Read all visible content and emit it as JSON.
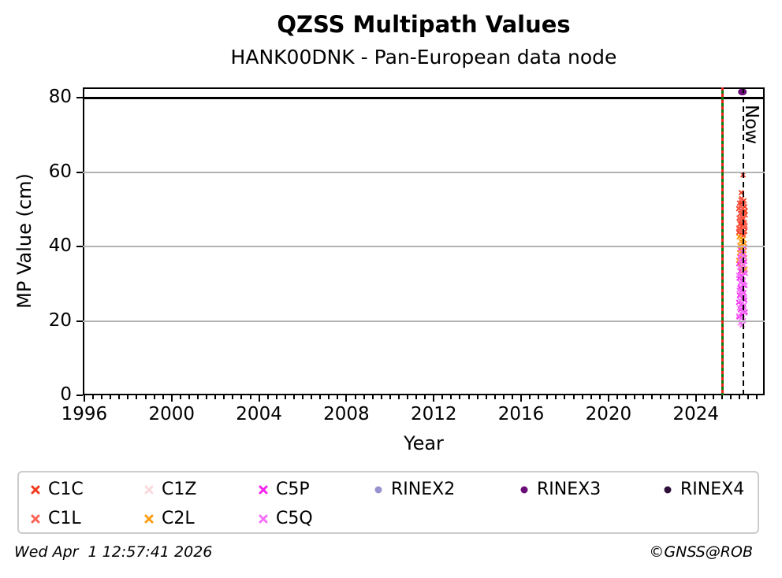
{
  "header": {
    "title": "QZSS Multipath Values",
    "subtitle": "HANK00DNK - Pan-European data node"
  },
  "footer": {
    "timestamp": "Wed Apr  1 12:57:41 2026",
    "credit": "©GNSS@ROB"
  },
  "chart_data": {
    "type": "scatter",
    "title": "QZSS Multipath Values",
    "subtitle": "HANK00DNK - Pan-European data node",
    "xlabel": "Year",
    "ylabel": "MP Value (cm)",
    "xlim": [
      1995.93,
      2027.15
    ],
    "ylim": [
      0,
      82.8
    ],
    "x_major_ticks": [
      1996,
      2000,
      2004,
      2008,
      2012,
      2016,
      2020,
      2024
    ],
    "x_minor_step": 0.4,
    "y_ticks": [
      0,
      20,
      40,
      60,
      80
    ],
    "grid_y": [
      20,
      40,
      60
    ],
    "grid_color": "#b3b3b3",
    "grid": true,
    "legend_position": "bottom",
    "hline": {
      "y": 80,
      "color": "#000000"
    },
    "vlines": [
      {
        "x": 2025.23,
        "style": "solid-green-with-red-dashes",
        "colors": [
          "#0a7a0a",
          "#e8231a"
        ],
        "label": ""
      },
      {
        "x": 2026.17,
        "style": "dashed-black",
        "colors": [
          "#000000"
        ],
        "label": "Now"
      }
    ],
    "series": [
      {
        "name": "C1C",
        "marker": "x",
        "color": "#f23a1e",
        "points": [
          [
            2026.16,
            59.3
          ],
          [
            2026.08,
            54.5
          ],
          [
            2026.1,
            52.9
          ],
          [
            2026.2,
            52.3
          ],
          [
            2026.0,
            51.7
          ],
          [
            2026.14,
            51.2
          ],
          [
            2026.24,
            50.7
          ],
          [
            2025.96,
            50.2
          ],
          [
            2026.08,
            49.8
          ],
          [
            2026.18,
            49.3
          ],
          [
            2026.04,
            48.9
          ],
          [
            2026.26,
            48.5
          ],
          [
            2026.12,
            48.1
          ],
          [
            2025.98,
            47.7
          ],
          [
            2026.16,
            47.3
          ],
          [
            2026.06,
            46.9
          ],
          [
            2026.22,
            46.5
          ],
          [
            2026.02,
            46.1
          ],
          [
            2026.1,
            45.7
          ],
          [
            2026.2,
            45.3
          ],
          [
            2026.0,
            44.9
          ],
          [
            2026.14,
            44.5
          ],
          [
            2026.24,
            44.1
          ],
          [
            2025.96,
            43.8
          ],
          [
            2026.08,
            43.4
          ],
          [
            2026.18,
            43.0
          ],
          [
            2026.04,
            50.9
          ],
          [
            2026.26,
            49.6
          ],
          [
            2026.12,
            46.3
          ],
          [
            2025.98,
            44.7
          ]
        ]
      },
      {
        "name": "C1Z",
        "marker": "x",
        "color": "#fbd9dd",
        "points": [
          [
            2025.98,
            40.5
          ],
          [
            2026.16,
            37.9
          ],
          [
            2026.06,
            35.3
          ]
        ]
      },
      {
        "name": "C5P",
        "marker": "x",
        "color": "#f322ec",
        "points": [
          [
            2026.22,
            39.9
          ],
          [
            2026.02,
            39.3
          ],
          [
            2026.1,
            38.6
          ],
          [
            2026.2,
            38.0
          ],
          [
            2026.0,
            37.3
          ],
          [
            2026.14,
            36.7
          ],
          [
            2026.24,
            36.0
          ],
          [
            2025.96,
            35.4
          ],
          [
            2026.08,
            34.7
          ],
          [
            2026.18,
            34.1
          ],
          [
            2026.04,
            33.4
          ],
          [
            2026.26,
            32.8
          ],
          [
            2026.12,
            32.1
          ],
          [
            2025.98,
            31.5
          ],
          [
            2026.16,
            30.8
          ],
          [
            2026.06,
            30.2
          ],
          [
            2026.22,
            29.5
          ],
          [
            2026.02,
            28.9
          ],
          [
            2026.1,
            28.2
          ],
          [
            2026.2,
            27.6
          ],
          [
            2026.0,
            26.9
          ],
          [
            2026.14,
            26.3
          ],
          [
            2026.24,
            25.6
          ],
          [
            2025.96,
            25.0
          ],
          [
            2026.08,
            24.3
          ],
          [
            2026.18,
            23.7
          ],
          [
            2026.04,
            23.0
          ],
          [
            2026.26,
            22.4
          ],
          [
            2026.12,
            21.7
          ],
          [
            2025.98,
            21.1
          ]
        ]
      },
      {
        "name": "RINEX2",
        "marker": "circle",
        "color": "#9793cf",
        "points": []
      },
      {
        "name": "RINEX3",
        "marker": "circle",
        "color": "#6b0d78",
        "points": [
          [
            2026.13,
            81.6
          ]
        ]
      },
      {
        "name": "RINEX4",
        "marker": "circle",
        "color": "#2d0f39",
        "points": []
      },
      {
        "name": "C1L",
        "marker": "x",
        "color": "#fc6456",
        "points": [
          [
            2026.06,
            52.5
          ],
          [
            2026.22,
            51.5
          ],
          [
            2026.02,
            50.9
          ],
          [
            2026.1,
            49.6
          ],
          [
            2026.2,
            48.7
          ],
          [
            2026.0,
            47.5
          ],
          [
            2026.14,
            46.7
          ],
          [
            2026.24,
            45.9
          ],
          [
            2025.96,
            45.0
          ],
          [
            2026.08,
            44.3
          ],
          [
            2026.18,
            43.6
          ],
          [
            2026.04,
            47.1
          ],
          [
            2026.26,
            45.5
          ],
          [
            2026.12,
            48.3
          ]
        ]
      },
      {
        "name": "C2L",
        "marker": "x",
        "color": "#ff9c12",
        "points": [
          [
            2025.98,
            42.6
          ],
          [
            2026.16,
            42.0
          ],
          [
            2026.06,
            41.4
          ],
          [
            2026.22,
            40.8
          ],
          [
            2026.02,
            40.2
          ],
          [
            2026.1,
            39.5
          ],
          [
            2026.2,
            38.9
          ],
          [
            2026.0,
            38.3
          ],
          [
            2026.14,
            37.6
          ],
          [
            2026.24,
            37.0
          ],
          [
            2025.96,
            36.3
          ],
          [
            2026.08,
            35.7
          ],
          [
            2026.18,
            35.1
          ],
          [
            2026.04,
            34.5
          ],
          [
            2026.26,
            33.9
          ],
          [
            2026.12,
            33.4
          ]
        ]
      },
      {
        "name": "C5Q",
        "marker": "x",
        "color": "#f470f9",
        "points": [
          [
            2026.16,
            38.5
          ],
          [
            2026.06,
            37.8
          ],
          [
            2026.22,
            37.1
          ],
          [
            2026.02,
            36.4
          ],
          [
            2026.1,
            35.8
          ],
          [
            2026.2,
            35.1
          ],
          [
            2026.0,
            34.4
          ],
          [
            2026.14,
            33.7
          ],
          [
            2026.24,
            33.0
          ],
          [
            2025.96,
            32.3
          ],
          [
            2026.08,
            31.7
          ],
          [
            2026.18,
            31.0
          ],
          [
            2026.04,
            30.3
          ],
          [
            2026.26,
            29.6
          ],
          [
            2026.12,
            28.9
          ],
          [
            2025.98,
            28.3
          ],
          [
            2026.16,
            27.6
          ],
          [
            2026.06,
            26.9
          ],
          [
            2026.22,
            26.2
          ],
          [
            2026.02,
            25.5
          ],
          [
            2026.1,
            24.8
          ],
          [
            2026.2,
            24.2
          ],
          [
            2026.0,
            23.5
          ],
          [
            2026.14,
            22.8
          ],
          [
            2026.24,
            22.1
          ],
          [
            2025.96,
            21.4
          ],
          [
            2026.08,
            20.8
          ],
          [
            2026.18,
            20.1
          ],
          [
            2026.04,
            19.4
          ],
          [
            2026.12,
            18.9
          ]
        ]
      }
    ]
  },
  "legend": {
    "items": [
      {
        "label": "C1C",
        "marker": "x",
        "color": "#f23a1e"
      },
      {
        "label": "C1Z",
        "marker": "x",
        "color": "#fbd9dd"
      },
      {
        "label": "C5P",
        "marker": "x",
        "color": "#f322ec"
      },
      {
        "label": "RINEX2",
        "marker": "circle",
        "color": "#9793cf"
      },
      {
        "label": "RINEX3",
        "marker": "circle",
        "color": "#6b0d78"
      },
      {
        "label": "RINEX4",
        "marker": "circle",
        "color": "#2d0f39"
      },
      {
        "label": "C1L",
        "marker": "x",
        "color": "#fc6456"
      },
      {
        "label": "C2L",
        "marker": "x",
        "color": "#ff9c12"
      },
      {
        "label": "C5Q",
        "marker": "x",
        "color": "#f470f9"
      }
    ]
  }
}
